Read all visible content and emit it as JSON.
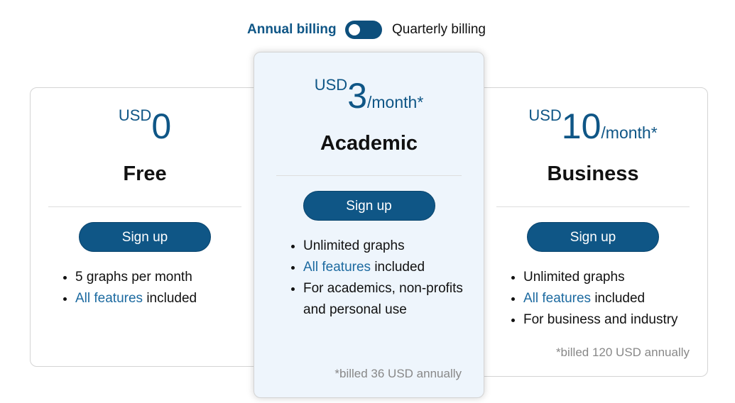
{
  "billing": {
    "annual_label": "Annual billing",
    "quarterly_label": "Quarterly billing",
    "toggle_state": "annual"
  },
  "colors": {
    "accent": "#0f5686",
    "highlight_bg": "#eef5fc",
    "link": "#1c6aa0"
  },
  "plans": [
    {
      "currency": "USD",
      "amount": "0",
      "period": "",
      "name": "Free",
      "button": "Sign up",
      "features": [
        {
          "text": "5 graphs per month"
        },
        {
          "link": "All features",
          "text": " included"
        }
      ],
      "note": ""
    },
    {
      "currency": "USD",
      "amount": "3",
      "period": "/month*",
      "name": "Academic",
      "button": "Sign up",
      "features": [
        {
          "text": "Unlimited graphs"
        },
        {
          "link": "All features",
          "text": " included"
        },
        {
          "text": "For academics, non-profits and personal use"
        }
      ],
      "note": "*billed 36 USD annually"
    },
    {
      "currency": "USD",
      "amount": "10",
      "period": "/month*",
      "name": "Business",
      "button": "Sign up",
      "features": [
        {
          "text": "Unlimited graphs"
        },
        {
          "link": "All features",
          "text": " included"
        },
        {
          "text": "For business and industry"
        }
      ],
      "note": "*billed 120 USD annually"
    }
  ]
}
